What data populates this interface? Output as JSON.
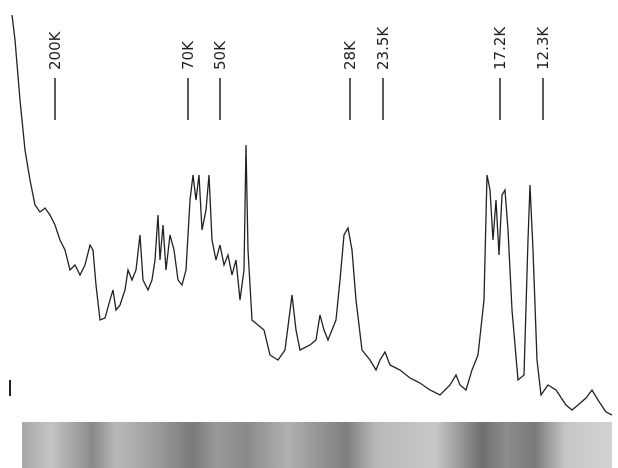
{
  "markers": [
    {
      "label": "200K"
    },
    {
      "label": "70K"
    },
    {
      "label": "50K"
    },
    {
      "label": "28K"
    },
    {
      "label": "23.5K"
    },
    {
      "label": "17.2K"
    },
    {
      "label": "12.3K"
    }
  ]
}
